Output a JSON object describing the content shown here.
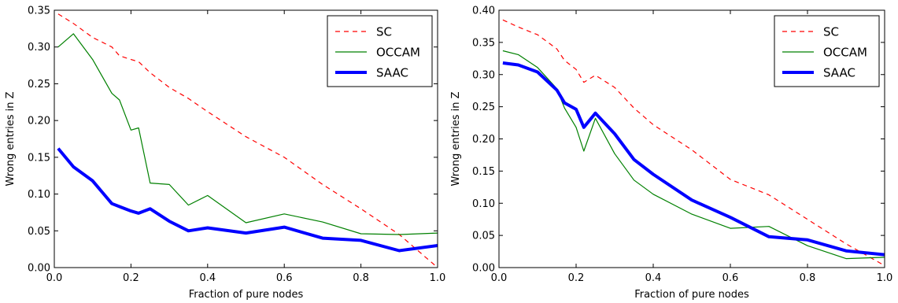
{
  "colors": {
    "SC": "#ff0000",
    "OCCAM": "#008000",
    "SAAC": "#0000ff"
  },
  "chart_data": [
    {
      "type": "line",
      "title": "",
      "xlabel": "Fraction of pure nodes",
      "ylabel": "Wrong entries in Z",
      "xlim": [
        0.0,
        1.0
      ],
      "ylim": [
        0.0,
        0.35
      ],
      "xticks": [
        "0.0",
        "0.2",
        "0.4",
        "0.6",
        "0.8",
        "1.0"
      ],
      "yticks": [
        "0.00",
        "0.05",
        "0.10",
        "0.15",
        "0.20",
        "0.25",
        "0.30",
        "0.35"
      ],
      "xtick_values": [
        0.0,
        0.2,
        0.4,
        0.6,
        0.8,
        1.0
      ],
      "ytick_values": [
        0.0,
        0.05,
        0.1,
        0.15,
        0.2,
        0.25,
        0.3,
        0.35
      ],
      "grid": false,
      "legend": "top-right",
      "series": [
        {
          "name": "SC",
          "style": "dashed",
          "x": [
            0.01,
            0.05,
            0.1,
            0.15,
            0.17,
            0.2,
            0.22,
            0.25,
            0.3,
            0.35,
            0.4,
            0.5,
            0.6,
            0.7,
            0.8,
            0.9,
            1.0
          ],
          "y": [
            0.345,
            0.332,
            0.313,
            0.3,
            0.288,
            0.283,
            0.28,
            0.265,
            0.245,
            0.23,
            0.212,
            0.178,
            0.15,
            0.113,
            0.08,
            0.045,
            0.0
          ]
        },
        {
          "name": "OCCAM",
          "style": "solid",
          "x": [
            0.01,
            0.05,
            0.1,
            0.15,
            0.17,
            0.2,
            0.22,
            0.25,
            0.3,
            0.35,
            0.4,
            0.5,
            0.6,
            0.7,
            0.8,
            0.9,
            1.0
          ],
          "y": [
            0.3,
            0.318,
            0.283,
            0.237,
            0.228,
            0.187,
            0.19,
            0.115,
            0.113,
            0.085,
            0.098,
            0.061,
            0.073,
            0.062,
            0.046,
            0.045,
            0.047
          ]
        },
        {
          "name": "SAAC",
          "style": "thick",
          "x": [
            0.01,
            0.05,
            0.1,
            0.15,
            0.17,
            0.2,
            0.22,
            0.25,
            0.3,
            0.35,
            0.4,
            0.5,
            0.6,
            0.7,
            0.8,
            0.9,
            1.0
          ],
          "y": [
            0.162,
            0.137,
            0.118,
            0.087,
            0.083,
            0.077,
            0.074,
            0.08,
            0.063,
            0.05,
            0.054,
            0.047,
            0.055,
            0.04,
            0.037,
            0.023,
            0.03
          ]
        }
      ]
    },
    {
      "type": "line",
      "title": "",
      "xlabel": "Fraction of pure nodes",
      "ylabel": "Wrong entries in Z",
      "xlim": [
        0.0,
        1.0
      ],
      "ylim": [
        0.0,
        0.4
      ],
      "xticks": [
        "0.0",
        "0.2",
        "0.4",
        "0.6",
        "0.8",
        "1.0"
      ],
      "yticks": [
        "0.00",
        "0.05",
        "0.10",
        "0.15",
        "0.20",
        "0.25",
        "0.30",
        "0.35",
        "0.40"
      ],
      "xtick_values": [
        0.0,
        0.2,
        0.4,
        0.6,
        0.8,
        1.0
      ],
      "ytick_values": [
        0.0,
        0.05,
        0.1,
        0.15,
        0.2,
        0.25,
        0.3,
        0.35,
        0.4
      ],
      "grid": false,
      "legend": "top-right",
      "series": [
        {
          "name": "SC",
          "style": "dashed",
          "x": [
            0.01,
            0.05,
            0.1,
            0.15,
            0.17,
            0.2,
            0.22,
            0.25,
            0.3,
            0.35,
            0.4,
            0.5,
            0.6,
            0.7,
            0.8,
            0.9,
            1.0
          ],
          "y": [
            0.385,
            0.374,
            0.362,
            0.34,
            0.322,
            0.308,
            0.288,
            0.299,
            0.28,
            0.248,
            0.222,
            0.183,
            0.137,
            0.113,
            0.075,
            0.037,
            0.003
          ]
        },
        {
          "name": "OCCAM",
          "style": "solid",
          "x": [
            0.01,
            0.05,
            0.1,
            0.15,
            0.17,
            0.2,
            0.22,
            0.25,
            0.3,
            0.35,
            0.4,
            0.5,
            0.6,
            0.7,
            0.8,
            0.9,
            1.0
          ],
          "y": [
            0.337,
            0.331,
            0.311,
            0.278,
            0.248,
            0.218,
            0.181,
            0.232,
            0.177,
            0.136,
            0.114,
            0.083,
            0.061,
            0.064,
            0.034,
            0.014,
            0.016
          ]
        },
        {
          "name": "SAAC",
          "style": "thick",
          "x": [
            0.01,
            0.05,
            0.1,
            0.15,
            0.17,
            0.2,
            0.22,
            0.25,
            0.3,
            0.35,
            0.4,
            0.5,
            0.6,
            0.7,
            0.8,
            0.9,
            1.0
          ],
          "y": [
            0.318,
            0.315,
            0.304,
            0.276,
            0.256,
            0.246,
            0.218,
            0.24,
            0.208,
            0.168,
            0.145,
            0.105,
            0.078,
            0.048,
            0.043,
            0.026,
            0.02
          ]
        }
      ]
    }
  ]
}
